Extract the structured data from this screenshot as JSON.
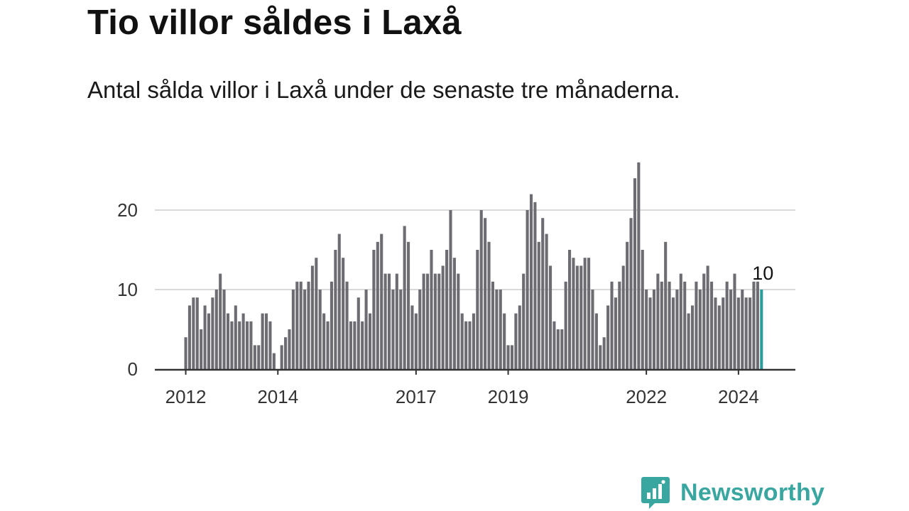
{
  "title": "Tio villor såldes i Laxå",
  "subtitle": "Antal sålda villor i Laxå under de senaste tre månaderna.",
  "brand": {
    "name": "Newsworthy",
    "icon": "chat-bar-chart-icon",
    "color": "#3aa6a0"
  },
  "chart_data": {
    "type": "bar",
    "title": "Tio villor såldes i Laxå",
    "subtitle": "Antal sålda villor i Laxå under de senaste tre månaderna.",
    "xlabel": "",
    "ylabel": "",
    "ylim": [
      0,
      25
    ],
    "yticks": [
      0,
      10,
      20
    ],
    "grid": "horizontal",
    "start": "2012-01",
    "interval": "month",
    "xtick_labels": [
      "2012",
      "2014",
      "2017",
      "2019",
      "2022",
      "2024"
    ],
    "values": [
      4,
      8,
      9,
      9,
      5,
      8,
      7,
      9,
      10,
      12,
      10,
      7,
      6,
      8,
      6,
      7,
      6,
      6,
      3,
      3,
      7,
      7,
      6,
      2,
      0,
      3,
      4,
      5,
      10,
      11,
      11,
      10,
      11,
      13,
      14,
      10,
      7,
      6,
      11,
      15,
      17,
      14,
      11,
      6,
      6,
      9,
      6,
      10,
      7,
      15,
      16,
      17,
      12,
      12,
      10,
      12,
      10,
      18,
      16,
      8,
      7,
      10,
      12,
      12,
      15,
      12,
      12,
      13,
      15,
      20,
      14,
      12,
      7,
      6,
      6,
      7,
      15,
      20,
      19,
      16,
      11,
      10,
      10,
      7,
      3,
      3,
      7,
      8,
      12,
      20,
      22,
      21,
      16,
      19,
      17,
      13,
      6,
      5,
      5,
      11,
      15,
      14,
      13,
      13,
      14,
      14,
      10,
      7,
      3,
      4,
      8,
      11,
      9,
      11,
      13,
      16,
      19,
      24,
      26,
      15,
      10,
      9,
      10,
      12,
      11,
      16,
      11,
      9,
      10,
      12,
      11,
      7,
      8,
      11,
      10,
      12,
      13,
      11,
      9,
      8,
      9,
      11,
      10,
      12,
      9,
      10,
      9,
      9,
      11,
      11,
      10
    ],
    "highlight": {
      "index": 150,
      "value": 10,
      "label": "10",
      "color": "#2a9d9a"
    },
    "bar_color": "#6e6c73",
    "axis_color": "#333333",
    "grid_color": "#d9d9d9"
  }
}
